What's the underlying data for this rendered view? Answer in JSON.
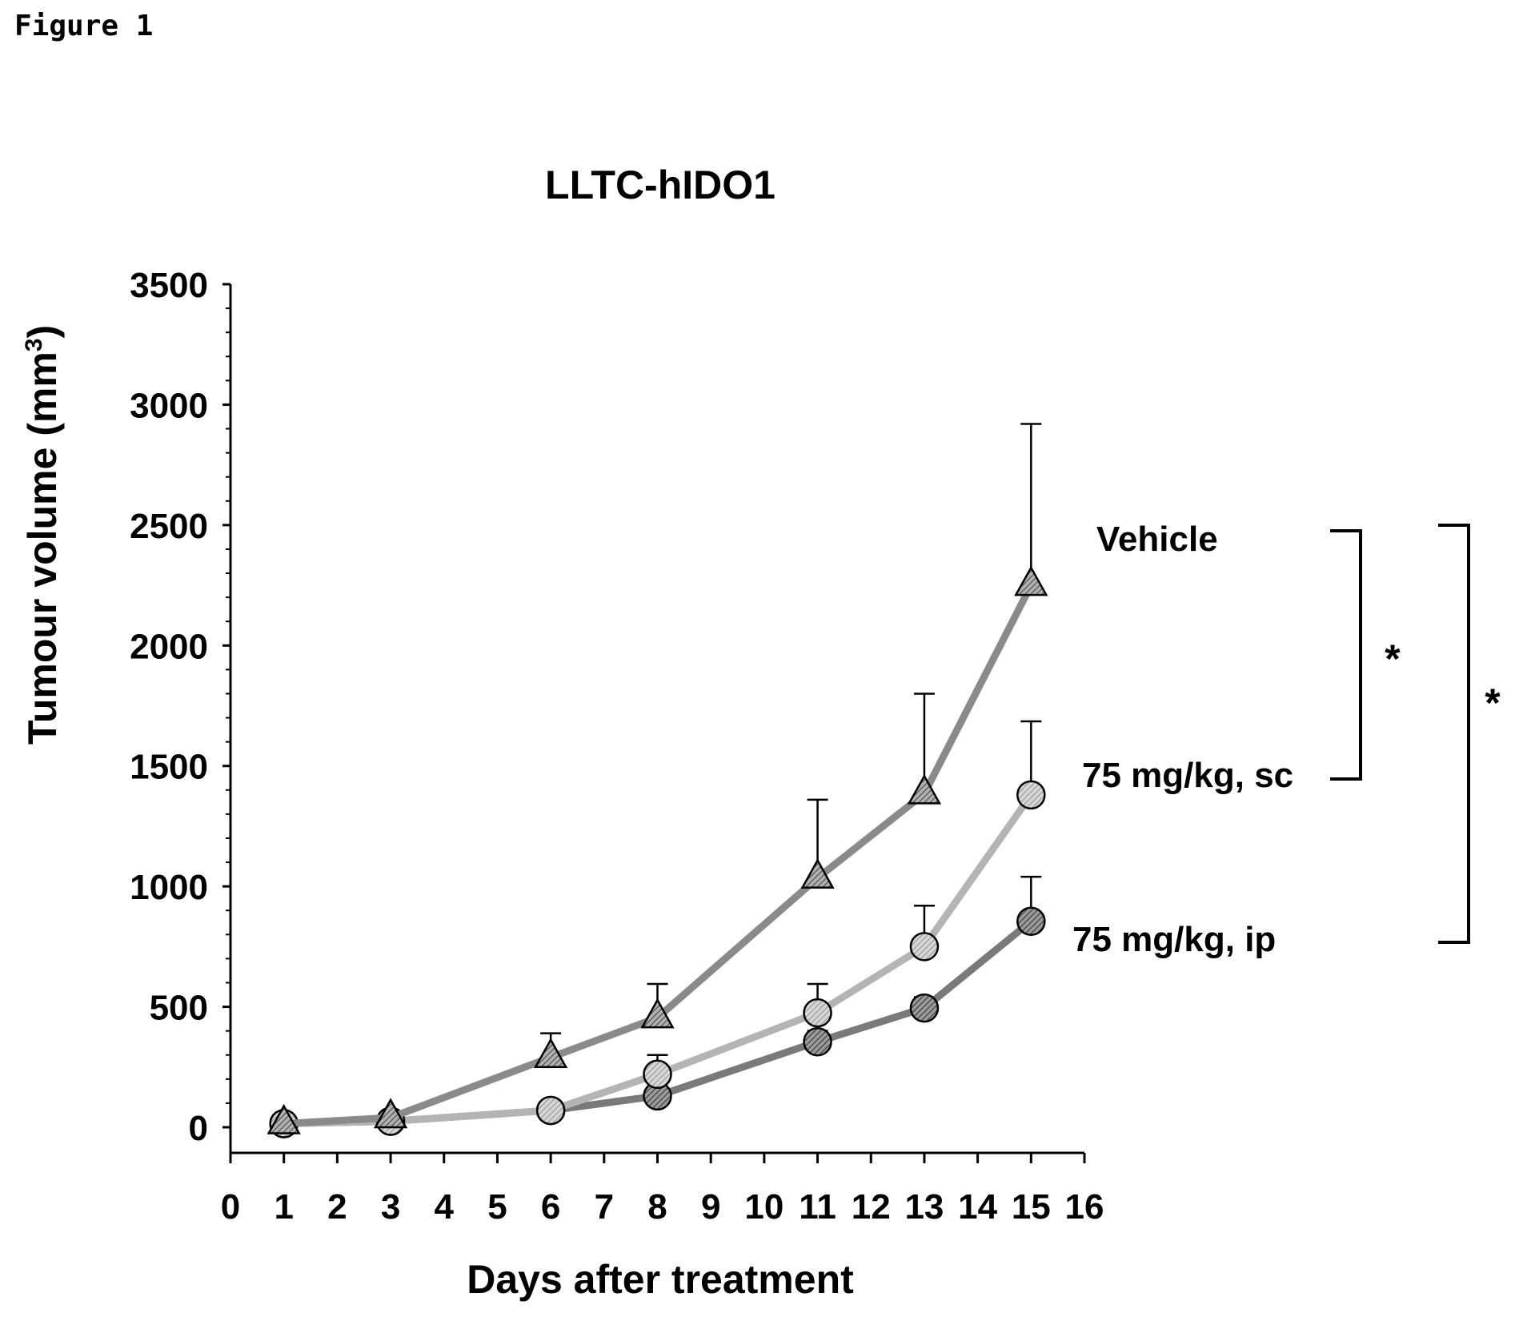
{
  "figure_label": "Figure 1",
  "chart_data": {
    "type": "line",
    "title": "LLTC-hIDO1",
    "xlabel": "Days after treatment",
    "ylabel": "Tumour volume (mm",
    "ylabel_superscript": "3",
    "ylabel_close": ")",
    "xlim": [
      0,
      16
    ],
    "ylim": [
      0,
      3500
    ],
    "x_ticks": [
      0,
      1,
      2,
      3,
      4,
      5,
      6,
      7,
      8,
      9,
      10,
      11,
      12,
      13,
      14,
      15,
      16
    ],
    "y_ticks": [
      0,
      500,
      1000,
      1500,
      2000,
      2500,
      3000,
      3500
    ],
    "grid": false,
    "x": [
      1,
      3,
      6,
      8,
      11,
      13,
      15
    ],
    "series": [
      {
        "name": "Vehicle",
        "marker": "triangle",
        "line_color": "#8a8a8a",
        "marker_fill": "#a8a8a8",
        "values": [
          15,
          40,
          290,
          455,
          1035,
          1385,
          2250
        ],
        "error_upper": [
          15,
          50,
          390,
          595,
          1360,
          1800,
          2920
        ]
      },
      {
        "name": "75 mg/kg, sc",
        "marker": "circle",
        "line_color": "#b4b4b4",
        "marker_fill": "#c8c8c8",
        "values": [
          15,
          25,
          70,
          220,
          475,
          750,
          1380
        ],
        "error_upper": [
          15,
          25,
          75,
          300,
          595,
          920,
          1685
        ]
      },
      {
        "name": "75 mg/kg, ip",
        "marker": "circle",
        "line_color": "#7a7a7a",
        "marker_fill": "#8c8c8c",
        "values": [
          15,
          25,
          70,
          130,
          355,
          495,
          855
        ],
        "error_upper": [
          15,
          25,
          75,
          150,
          400,
          540,
          1040
        ]
      }
    ],
    "significance": [
      {
        "label": "*",
        "from": "Vehicle",
        "to": "75 mg/kg, sc"
      },
      {
        "label": "*",
        "from": "Vehicle",
        "to": "75 mg/kg, ip"
      }
    ]
  }
}
